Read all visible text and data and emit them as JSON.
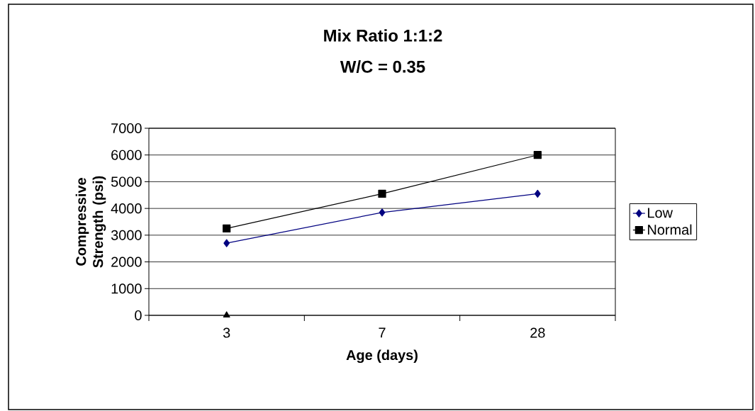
{
  "chart_data": {
    "type": "line",
    "title": "Mix Ratio  1:1:2",
    "subtitle": "W/C = 0.35",
    "xlabel": "Age (days)",
    "ylabel": "Compressive Strength (psi)",
    "categories": [
      "3",
      "7",
      "28"
    ],
    "series": [
      {
        "name": "Low",
        "color": "#000080",
        "marker": "diamond",
        "values": [
          2700,
          3850,
          4550
        ]
      },
      {
        "name": "Normal",
        "color": "#000000",
        "marker": "square",
        "values": [
          3250,
          4550,
          6000
        ]
      },
      {
        "color": "#000000",
        "marker": "triangle",
        "values": [
          0,
          null,
          null
        ]
      }
    ],
    "ylim": [
      0,
      7000
    ],
    "yticks": [
      0,
      1000,
      2000,
      3000,
      4000,
      5000,
      6000,
      7000
    ],
    "grid": "y",
    "legend": "right"
  }
}
